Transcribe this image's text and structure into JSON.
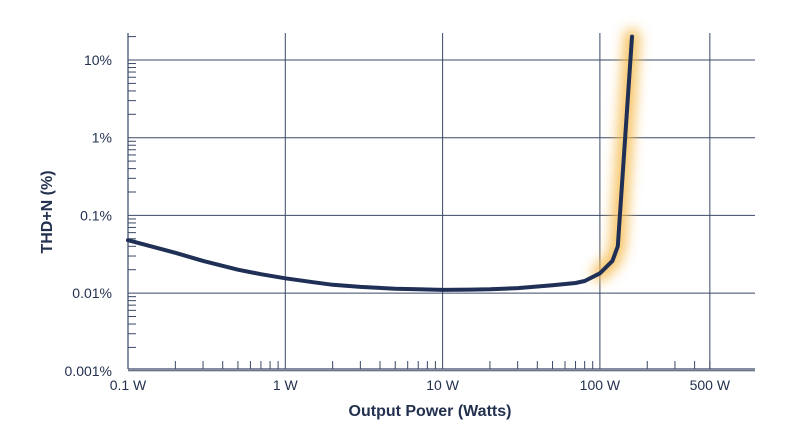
{
  "chart_data": {
    "type": "line",
    "xlabel": "Output Power (Watts)",
    "ylabel": "THD+N (%)",
    "xscale": "log",
    "yscale": "log",
    "xlim": [
      0.1,
      500
    ],
    "ylim": [
      0.001,
      20
    ],
    "x_ticks": [
      {
        "value": 0.1,
        "label": "0.1 W"
      },
      {
        "value": 1,
        "label": "1 W"
      },
      {
        "value": 10,
        "label": "10 W"
      },
      {
        "value": 100,
        "label": "100 W"
      },
      {
        "value": 500,
        "label": "500 W"
      }
    ],
    "y_ticks": [
      {
        "value": 0.001,
        "label": "0.001%"
      },
      {
        "value": 0.01,
        "label": "0.01%"
      },
      {
        "value": 0.1,
        "label": "0.1%"
      },
      {
        "value": 1,
        "label": "1%"
      },
      {
        "value": 10,
        "label": "10%"
      }
    ],
    "grid": true,
    "series": [
      {
        "color": "#1f2f55",
        "x": [
          0.1,
          0.2,
          0.3,
          0.5,
          0.7,
          1,
          1.5,
          2,
          3,
          5,
          7,
          10,
          15,
          20,
          30,
          50,
          70,
          80,
          100,
          120,
          130,
          160
        ],
        "y": [
          0.048,
          0.033,
          0.026,
          0.02,
          0.0175,
          0.0155,
          0.0138,
          0.0128,
          0.012,
          0.0114,
          0.0112,
          0.011,
          0.0111,
          0.0112,
          0.0116,
          0.0126,
          0.0135,
          0.0143,
          0.018,
          0.026,
          0.04,
          20
        ],
        "highlight_color": "#f5b94a",
        "highlight_from_x": 100
      }
    ]
  }
}
